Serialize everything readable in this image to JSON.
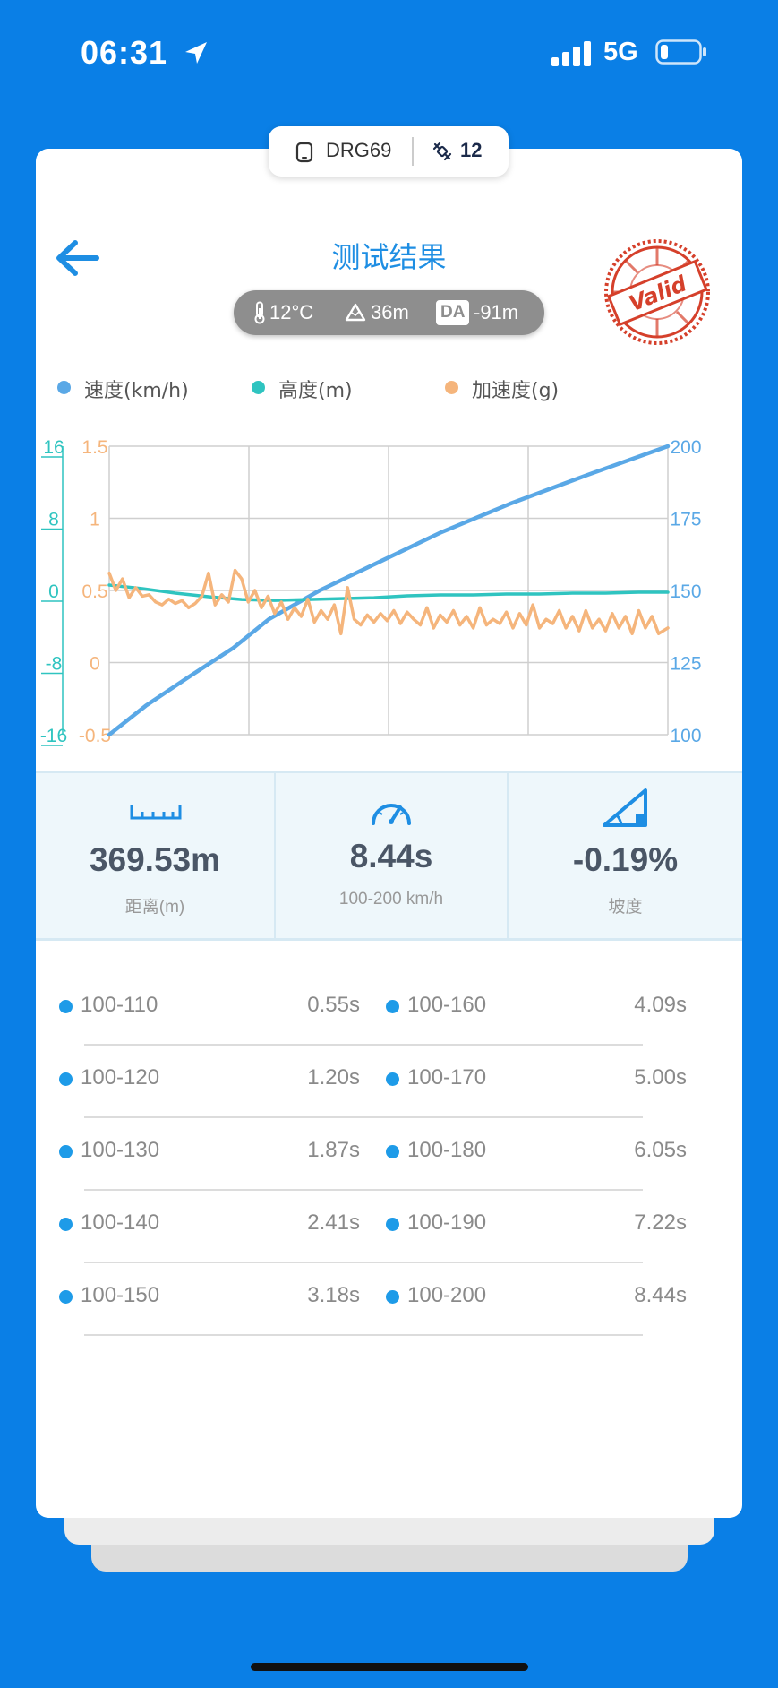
{
  "status_bar": {
    "time": "06:31",
    "network": "5G"
  },
  "device": {
    "name": "DRG69",
    "satellites": "12"
  },
  "header": {
    "title": "测试结果",
    "stamp_text": "Valid"
  },
  "environment": {
    "temperature": "12°C",
    "altitude": "36m",
    "da_label": "DA",
    "density_altitude": "-91m"
  },
  "legend": [
    {
      "label": "速度(km/h)",
      "color": "#5aa8e6"
    },
    {
      "label": "高度(m)",
      "color": "#2fc4c0"
    },
    {
      "label": "加速度(g)",
      "color": "#f5b57c"
    }
  ],
  "chart_data": {
    "type": "line",
    "x_range": [
      0,
      8.44
    ],
    "axes": {
      "altitude_left": {
        "ticks": [
          "16",
          "8",
          "0",
          "-8",
          "-16"
        ],
        "range": [
          -16,
          16
        ],
        "color": "#2fc4c0"
      },
      "accel_left": {
        "ticks": [
          "1.5",
          "1",
          "0.5",
          "0",
          "-0.5"
        ],
        "range": [
          -0.5,
          1.5
        ],
        "color": "#f5b57c"
      },
      "speed_right": {
        "ticks": [
          "200",
          "175",
          "150",
          "125",
          "100"
        ],
        "range": [
          100,
          200
        ],
        "color": "#5aa8e6"
      }
    },
    "grid": true,
    "series": [
      {
        "name": "速度(km/h)",
        "color": "#5aa8e6",
        "axis": "speed_right",
        "x": [
          0,
          0.55,
          1.2,
          1.87,
          2.41,
          3.18,
          4.09,
          5.0,
          6.05,
          7.22,
          8.44
        ],
        "y": [
          100,
          110,
          120,
          130,
          140,
          150,
          160,
          170,
          180,
          190,
          200
        ]
      },
      {
        "name": "高度(m)",
        "color": "#2fc4c0",
        "axis": "altitude_left",
        "x": [
          0,
          0.5,
          1,
          1.5,
          2,
          2.5,
          3,
          3.5,
          4,
          4.5,
          5,
          5.5,
          6,
          6.5,
          7,
          7.5,
          8,
          8.44
        ],
        "y": [
          0.6,
          0.2,
          -0.3,
          -0.7,
          -1.0,
          -1.1,
          -1.0,
          -0.9,
          -0.8,
          -0.6,
          -0.5,
          -0.5,
          -0.4,
          -0.4,
          -0.3,
          -0.3,
          -0.2,
          -0.2
        ]
      },
      {
        "name": "加速度(g)",
        "color": "#f5b57c",
        "axis": "accel_left",
        "x": [
          0,
          0.1,
          0.2,
          0.3,
          0.4,
          0.5,
          0.6,
          0.7,
          0.8,
          0.9,
          1.0,
          1.1,
          1.2,
          1.3,
          1.4,
          1.5,
          1.6,
          1.7,
          1.8,
          1.9,
          2.0,
          2.1,
          2.2,
          2.3,
          2.4,
          2.5,
          2.6,
          2.7,
          2.8,
          2.9,
          3.0,
          3.1,
          3.2,
          3.3,
          3.4,
          3.5,
          3.6,
          3.7,
          3.8,
          3.9,
          4.0,
          4.1,
          4.2,
          4.3,
          4.4,
          4.5,
          4.6,
          4.7,
          4.8,
          4.9,
          5.0,
          5.1,
          5.2,
          5.3,
          5.4,
          5.5,
          5.6,
          5.7,
          5.8,
          5.9,
          6.0,
          6.1,
          6.2,
          6.3,
          6.4,
          6.5,
          6.6,
          6.7,
          6.8,
          6.9,
          7.0,
          7.1,
          7.2,
          7.3,
          7.4,
          7.5,
          7.6,
          7.7,
          7.8,
          7.9,
          8.0,
          8.1,
          8.2,
          8.3,
          8.44
        ],
        "y": [
          0.62,
          0.5,
          0.58,
          0.45,
          0.52,
          0.46,
          0.47,
          0.42,
          0.4,
          0.44,
          0.41,
          0.43,
          0.38,
          0.41,
          0.46,
          0.62,
          0.4,
          0.47,
          0.42,
          0.64,
          0.58,
          0.42,
          0.5,
          0.38,
          0.46,
          0.34,
          0.42,
          0.3,
          0.38,
          0.32,
          0.44,
          0.28,
          0.36,
          0.3,
          0.4,
          0.2,
          0.52,
          0.3,
          0.26,
          0.33,
          0.28,
          0.34,
          0.29,
          0.36,
          0.27,
          0.35,
          0.3,
          0.26,
          0.38,
          0.24,
          0.33,
          0.28,
          0.36,
          0.26,
          0.32,
          0.24,
          0.38,
          0.26,
          0.3,
          0.27,
          0.35,
          0.24,
          0.34,
          0.26,
          0.4,
          0.24,
          0.3,
          0.27,
          0.36,
          0.24,
          0.32,
          0.22,
          0.36,
          0.24,
          0.3,
          0.22,
          0.34,
          0.24,
          0.32,
          0.2,
          0.36,
          0.24,
          0.32,
          0.2,
          0.24
        ]
      }
    ]
  },
  "stats": [
    {
      "value": "369.53m",
      "label": "距离(m)",
      "icon": "ruler-icon"
    },
    {
      "value": "8.44s",
      "label": "100-200 km/h",
      "icon": "speedometer-icon"
    },
    {
      "value": "-0.19%",
      "label": "坡度",
      "icon": "slope-icon"
    }
  ],
  "splits": [
    {
      "left": {
        "range": "100-110",
        "time": "0.55s"
      },
      "right": {
        "range": "100-160",
        "time": "4.09s"
      }
    },
    {
      "left": {
        "range": "100-120",
        "time": "1.20s"
      },
      "right": {
        "range": "100-170",
        "time": "5.00s"
      }
    },
    {
      "left": {
        "range": "100-130",
        "time": "1.87s"
      },
      "right": {
        "range": "100-180",
        "time": "6.05s"
      }
    },
    {
      "left": {
        "range": "100-140",
        "time": "2.41s"
      },
      "right": {
        "range": "100-190",
        "time": "7.22s"
      }
    },
    {
      "left": {
        "range": "100-150",
        "time": "3.18s"
      },
      "right": {
        "range": "100-200",
        "time": "8.44s"
      }
    }
  ]
}
